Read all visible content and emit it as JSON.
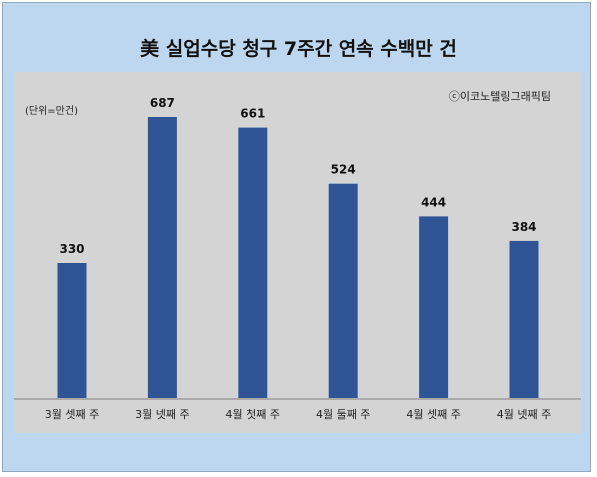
{
  "title": "美 실업수당 청구 7주간 연속 수백만 건",
  "unit_note": "(단위=만건)",
  "source": "ⓒ이코노텔링그래픽팀",
  "colors": {
    "background": "#bdd7ee",
    "plot_area": "#d4d4d4",
    "bar": "#2f5597"
  },
  "chart_data": {
    "type": "bar",
    "title": "美 실업수당 청구 7주간 연속 수백만 건",
    "categories": [
      "3월 셋째 주",
      "3월 넷째 주",
      "4월 첫째 주",
      "4월 둘째 주",
      "4월 셋째 주",
      "4월 넷째 주"
    ],
    "series": [
      {
        "values": [
          330,
          687,
          661,
          524,
          444,
          384
        ]
      }
    ],
    "data_labels": [
      "330",
      "687",
      "661",
      "524",
      "444",
      "384"
    ],
    "ylim": [
      0,
      800
    ],
    "grid": false,
    "legend": "none"
  }
}
